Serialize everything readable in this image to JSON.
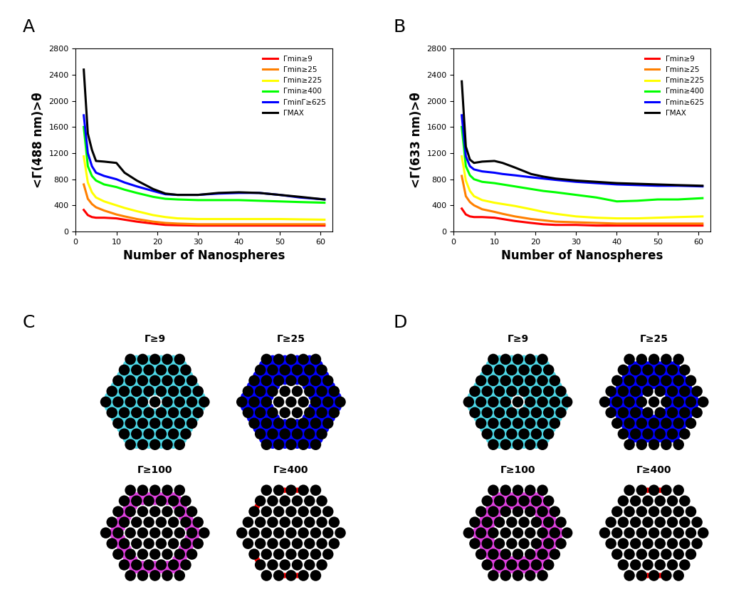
{
  "chart_data": [
    {
      "type": "line",
      "label": "A",
      "x_label": "Number of Nanospheres",
      "y_label": "<Γ(488 nm)>θ",
      "x": [
        2,
        3,
        4,
        5,
        7,
        10,
        12,
        15,
        19,
        22,
        25,
        30,
        35,
        40,
        45,
        50,
        55,
        61
      ],
      "xlim": [
        0,
        63
      ],
      "xticks": [
        0,
        10,
        20,
        30,
        40,
        50,
        60
      ],
      "ylim": [
        0,
        2800
      ],
      "yticks": [
        0,
        400,
        800,
        1200,
        1600,
        2000,
        2400,
        2800
      ],
      "legend": "upper right",
      "series": [
        {
          "name": "Γmin≥9",
          "color": "#ff0000",
          "values": [
            330,
            250,
            220,
            210,
            210,
            200,
            180,
            150,
            120,
            100,
            95,
            90,
            90,
            90,
            90,
            90,
            90,
            90
          ]
        },
        {
          "name": "Γmin≥25",
          "color": "#ff8000",
          "values": [
            720,
            500,
            420,
            370,
            320,
            260,
            230,
            190,
            150,
            130,
            120,
            110,
            110,
            110,
            110,
            110,
            110,
            110
          ]
        },
        {
          "name": "Γmin≥225",
          "color": "#ffff00",
          "values": [
            1150,
            750,
            600,
            520,
            460,
            400,
            360,
            310,
            250,
            220,
            200,
            190,
            190,
            190,
            190,
            190,
            185,
            180
          ]
        },
        {
          "name": "Γmin≥400",
          "color": "#00ff00",
          "values": [
            1600,
            1000,
            850,
            780,
            720,
            680,
            640,
            590,
            530,
            500,
            490,
            480,
            480,
            480,
            470,
            460,
            450,
            440
          ]
        },
        {
          "name": "ΓminΓ≥625",
          "color": "#0000ff",
          "values": [
            1780,
            1200,
            1000,
            900,
            850,
            800,
            750,
            690,
            620,
            570,
            560,
            560,
            580,
            590,
            590,
            560,
            520,
            490
          ]
        },
        {
          "name": "ΓMAX",
          "color": "#000000",
          "values": [
            2480,
            1500,
            1250,
            1080,
            1070,
            1050,
            900,
            780,
            650,
            580,
            560,
            560,
            590,
            600,
            590,
            560,
            530,
            490
          ]
        }
      ]
    },
    {
      "type": "line",
      "label": "B",
      "x_label": "Number of Nanospheres",
      "y_label": "<Γ(633 nm)>θ",
      "x": [
        2,
        3,
        4,
        5,
        7,
        10,
        12,
        15,
        19,
        22,
        25,
        30,
        35,
        40,
        45,
        50,
        55,
        61
      ],
      "xlim": [
        0,
        63
      ],
      "xticks": [
        0,
        10,
        20,
        30,
        40,
        50,
        60
      ],
      "ylim": [
        0,
        2800
      ],
      "yticks": [
        0,
        400,
        800,
        1200,
        1600,
        2000,
        2400,
        2800
      ],
      "legend": "upper right",
      "series": [
        {
          "name": "Γmin≥9",
          "color": "#ff0000",
          "values": [
            350,
            260,
            230,
            220,
            220,
            210,
            190,
            160,
            130,
            110,
            100,
            100,
            90,
            90,
            90,
            90,
            90,
            90
          ]
        },
        {
          "name": "Γmin≥25",
          "color": "#ff8000",
          "values": [
            850,
            540,
            450,
            400,
            340,
            300,
            270,
            230,
            190,
            170,
            150,
            140,
            130,
            120,
            120,
            120,
            120,
            120
          ]
        },
        {
          "name": "Γmin≥225",
          "color": "#ffff00",
          "values": [
            1150,
            780,
            620,
            540,
            480,
            440,
            420,
            390,
            340,
            300,
            270,
            230,
            210,
            200,
            200,
            210,
            220,
            230
          ]
        },
        {
          "name": "Γmin≥400",
          "color": "#00ff00",
          "values": [
            1600,
            1000,
            860,
            800,
            760,
            740,
            720,
            690,
            650,
            620,
            600,
            560,
            520,
            460,
            470,
            490,
            490,
            510
          ]
        },
        {
          "name": "Γmin≥625",
          "color": "#0000ff",
          "values": [
            1780,
            1150,
            1000,
            950,
            920,
            900,
            880,
            860,
            830,
            810,
            790,
            760,
            740,
            720,
            710,
            700,
            700,
            690
          ]
        },
        {
          "name": "ΓMAX",
          "color": "#000000",
          "values": [
            2300,
            1300,
            1100,
            1050,
            1070,
            1080,
            1050,
            980,
            880,
            840,
            810,
            780,
            760,
            740,
            730,
            720,
            710,
            700
          ]
        }
      ]
    }
  ],
  "diagrams": [
    {
      "label": "C",
      "spheres": 61,
      "panels": [
        {
          "title": "Γ≥9",
          "color": "#4dd9e8",
          "hot_shells": [
            1,
            4
          ]
        },
        {
          "title": "Γ≥25",
          "color": "#0000ff",
          "hot_shells": [
            2,
            4
          ]
        },
        {
          "title": "Γ≥100",
          "color": "#e040e0",
          "hot_shells": [
            3,
            3.5
          ]
        },
        {
          "title": "Γ≥400",
          "color": "#ff0000",
          "hot_shells": [
            4,
            4
          ],
          "hot_spots": 6
        }
      ]
    },
    {
      "label": "D",
      "spheres": 61,
      "panels": [
        {
          "title": "Γ≥9",
          "color": "#4dd9e8",
          "hot_shells": [
            1,
            4
          ]
        },
        {
          "title": "Γ≥25",
          "color": "#0000ff",
          "hot_shells": [
            1.5,
            3.5
          ]
        },
        {
          "title": "Γ≥100",
          "color": "#e040e0",
          "hot_shells": [
            2.5,
            3.5
          ]
        },
        {
          "title": "Γ≥400",
          "color": "#ff0000",
          "hot_shells": [
            4,
            4
          ],
          "hot_spots": 4
        }
      ]
    }
  ]
}
